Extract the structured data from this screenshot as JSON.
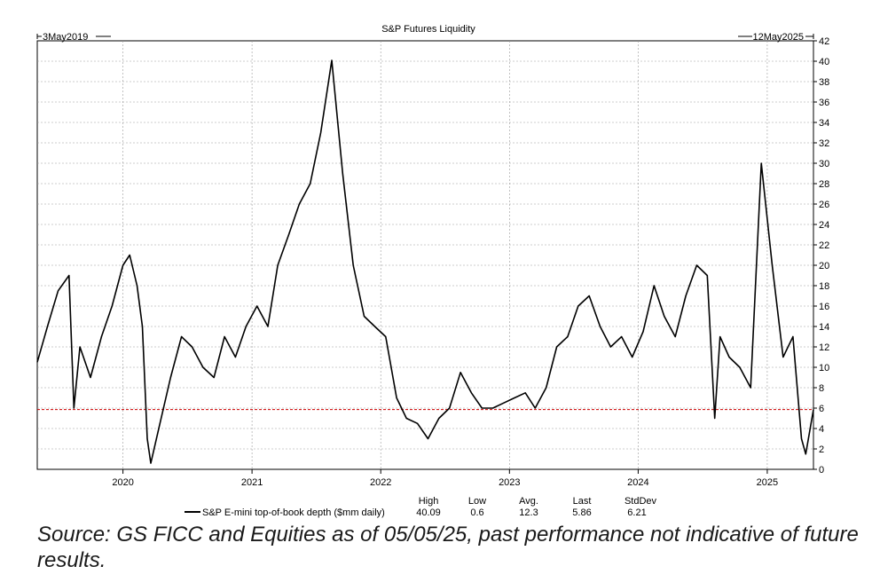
{
  "chart_data": {
    "type": "line",
    "title": "S&P Futures Liquidity",
    "start_label": "3May2019",
    "end_label": "12May2025",
    "x_range": [
      "2019-05-03",
      "2025-05-12"
    ],
    "x_tick_labels": [
      "2020",
      "2021",
      "2022",
      "2023",
      "2024",
      "2025"
    ],
    "ylim": [
      0,
      42
    ],
    "y_ticks": [
      0,
      2,
      4,
      6,
      8,
      10,
      12,
      14,
      16,
      18,
      20,
      22,
      24,
      26,
      28,
      30,
      32,
      34,
      36,
      38,
      40,
      42
    ],
    "y_axis_side": "right",
    "grid": true,
    "reference_line": {
      "y": 5.86,
      "color": "#cc0000",
      "style": "dashed"
    },
    "series": [
      {
        "name": "S&P E-mini top-of-book depth ($mm daily)",
        "color": "#000000",
        "x": [
          "2019-05-03",
          "2019-06-01",
          "2019-07-01",
          "2019-08-01",
          "2019-08-15",
          "2019-09-01",
          "2019-10-01",
          "2019-11-01",
          "2019-12-01",
          "2020-01-01",
          "2020-01-20",
          "2020-02-10",
          "2020-02-25",
          "2020-03-10",
          "2020-03-20",
          "2020-04-15",
          "2020-05-15",
          "2020-06-15",
          "2020-07-15",
          "2020-08-15",
          "2020-09-15",
          "2020-10-15",
          "2020-11-15",
          "2020-12-15",
          "2021-01-15",
          "2021-02-15",
          "2021-03-15",
          "2021-04-15",
          "2021-05-15",
          "2021-06-15",
          "2021-07-15",
          "2021-08-15",
          "2021-09-15",
          "2021-10-15",
          "2021-11-15",
          "2021-12-15",
          "2022-01-15",
          "2022-02-15",
          "2022-03-15",
          "2022-04-15",
          "2022-05-15",
          "2022-06-15",
          "2022-07-15",
          "2022-08-15",
          "2022-09-15",
          "2022-10-15",
          "2022-11-15",
          "2022-12-15",
          "2023-01-15",
          "2023-02-15",
          "2023-03-15",
          "2023-04-15",
          "2023-05-15",
          "2023-06-15",
          "2023-07-15",
          "2023-08-15",
          "2023-09-15",
          "2023-10-15",
          "2023-11-15",
          "2023-12-15",
          "2024-01-15",
          "2024-02-15",
          "2024-03-15",
          "2024-04-15",
          "2024-05-15",
          "2024-06-15",
          "2024-07-15",
          "2024-08-05",
          "2024-08-20",
          "2024-09-15",
          "2024-10-15",
          "2024-11-15",
          "2024-12-15",
          "2025-01-15",
          "2025-02-15",
          "2025-03-15",
          "2025-04-08",
          "2025-04-20",
          "2025-05-12"
        ],
        "y": [
          10.5,
          14.0,
          17.5,
          19.0,
          6.0,
          12.0,
          9.0,
          13.0,
          16.0,
          20.0,
          21.0,
          18.0,
          14.0,
          3.0,
          0.6,
          4.5,
          9.0,
          13.0,
          12.0,
          10.0,
          9.0,
          13.0,
          11.0,
          14.0,
          16.0,
          14.0,
          20.0,
          23.0,
          26.0,
          28.0,
          33.0,
          40.09,
          29.0,
          20.0,
          15.0,
          14.0,
          13.0,
          7.0,
          5.0,
          4.5,
          3.0,
          5.0,
          6.0,
          9.5,
          7.5,
          6.0,
          6.0,
          6.5,
          7.0,
          7.5,
          6.0,
          8.0,
          12.0,
          13.0,
          16.0,
          17.0,
          14.0,
          12.0,
          13.0,
          11.0,
          13.5,
          18.0,
          15.0,
          13.0,
          17.0,
          20.0,
          19.0,
          5.0,
          13.0,
          11.0,
          10.0,
          8.0,
          30.0,
          20.0,
          11.0,
          13.0,
          3.0,
          1.5,
          5.86
        ]
      }
    ],
    "stats": {
      "headers": [
        "High",
        "Low",
        "Avg.",
        "Last",
        "StdDev"
      ],
      "values": [
        "40.09",
        "0.6",
        "12.3",
        "5.86",
        "6.21"
      ]
    }
  },
  "source_note": "Source: GS FICC and Equities as of 05/05/25, past performance not indicative of future results."
}
